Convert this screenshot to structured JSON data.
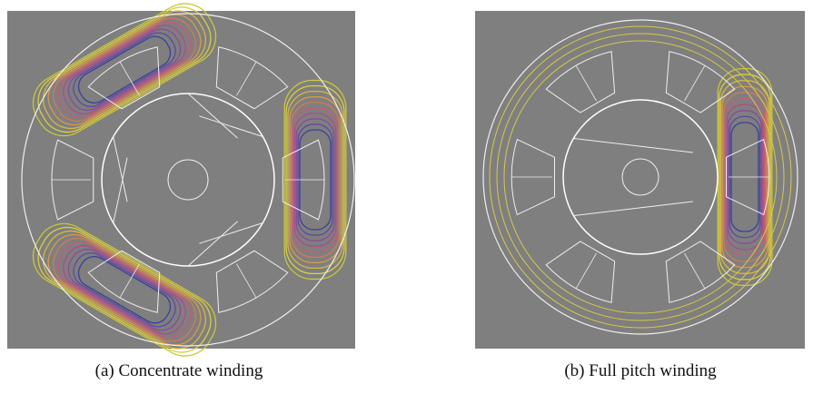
{
  "figures": [
    {
      "caption": "(a) Concentrate winding"
    },
    {
      "caption": "(b) Full pitch winding"
    }
  ]
}
